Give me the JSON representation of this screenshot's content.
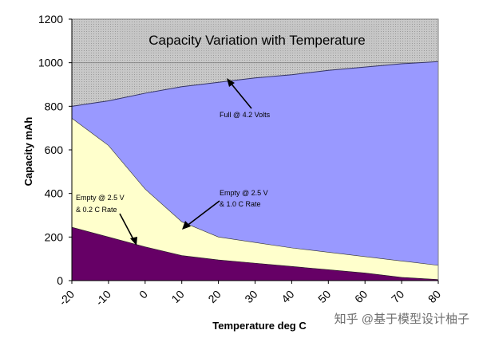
{
  "chart_data": {
    "type": "area",
    "title": "Capacity Variation with Temperature",
    "xlabel": "Temperature deg C",
    "ylabel": "Capacity mAh",
    "x": [
      -20,
      -10,
      0,
      10,
      20,
      30,
      40,
      50,
      60,
      70,
      80
    ],
    "x_ticks": [
      "-20",
      "-10",
      "0",
      "10",
      "20",
      "30",
      "40",
      "50",
      "60",
      "70",
      "80"
    ],
    "y_ticks": [
      "0",
      "200",
      "400",
      "600",
      "800",
      "1000",
      "1200"
    ],
    "xlim": [
      -20,
      80
    ],
    "ylim": [
      0,
      1200
    ],
    "grid": true,
    "series": [
      {
        "name": "Full @ 4.2 Volts",
        "color": "#9999ff",
        "values": [
          800,
          825,
          860,
          890,
          910,
          930,
          945,
          965,
          980,
          995,
          1005
        ]
      },
      {
        "name": "Empty @ 2.5 V & 0.2 C Rate",
        "color": "#ffffcc",
        "values": [
          745,
          620,
          420,
          270,
          200,
          175,
          150,
          130,
          110,
          90,
          70
        ]
      },
      {
        "name": "Empty @ 2.5 V & 1.0 C Rate",
        "color": "#660066",
        "values": [
          245,
          200,
          155,
          115,
          95,
          80,
          65,
          50,
          35,
          15,
          5
        ]
      }
    ],
    "background_color": "#c0c0c0",
    "annotations": [
      {
        "lines": [
          "Full @ 4.2 Volts"
        ],
        "points_to": [
          3,
          925
        ]
      },
      {
        "lines": [
          "Empty @ 2.5 V",
          "& 1.0 C Rate"
        ],
        "points_to": [
          10,
          250
        ]
      },
      {
        "lines": [
          "Empty @ 2.5 V",
          "& 0.2 C Rate"
        ],
        "points_to": [
          -2,
          170
        ]
      }
    ]
  },
  "watermark": "知乎 @基于模型设计柚子"
}
